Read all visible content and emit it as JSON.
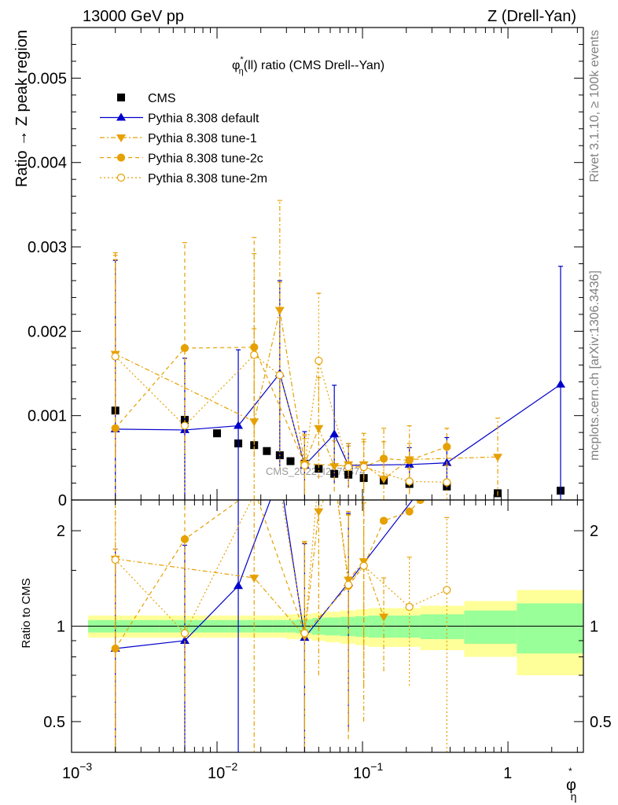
{
  "header": {
    "left": "13000 GeV pp",
    "right": "Z (Drell-Yan)"
  },
  "side_labels": {
    "rivet": "Rivet 3.1.10, ≥ 100k events",
    "mcplots": "mcplots.cern.ch [arXiv:1306.3436]"
  },
  "watermark": "CMS_2022_I2079374",
  "colors": {
    "cms": "#000000",
    "default": "#0000cc",
    "tunes": "#e6a000",
    "band_green": "#99ff99",
    "band_yellow": "#ffff99"
  },
  "chart_data": [
    {
      "type": "line",
      "title": "φ*η(ll) ratio (CMS Drell--Yan)",
      "title_parts": {
        "phi": "φ",
        "star": "*",
        "eta": "η",
        "rest": "(ll) ratio (CMS Drell--Yan)"
      },
      "ylabel": "Ratio → Z peak region",
      "xscale": "log",
      "xlim": [
        0.001,
        3.3
      ],
      "ylim": [
        0,
        0.0056
      ],
      "yticks": [
        0,
        0.001,
        0.002,
        0.003,
        0.004,
        0.005
      ],
      "ytick_labels": [
        "0",
        "0.001",
        "0.002",
        "0.003",
        "0.004",
        "0.005"
      ],
      "legend_position": "top-left",
      "series": [
        {
          "name": "CMS",
          "style": "cms",
          "x": [
            0.002,
            0.006,
            0.01,
            0.014,
            0.018,
            0.022,
            0.027,
            0.032,
            0.04,
            0.05,
            0.064,
            0.08,
            0.102,
            0.14,
            0.21,
            0.38,
            0.85,
            2.3
          ],
          "y": [
            0.00106,
            0.00095,
            0.00079,
            0.00067,
            0.00065,
            0.00058,
            0.00053,
            0.00046,
            0.00043,
            0.00037,
            0.00031,
            0.0003,
            0.00026,
            0.00023,
            0.00019,
            0.00016,
            8e-05,
            0.00011
          ]
        },
        {
          "name": "Pythia 8.308 default",
          "style": "default",
          "x": [
            0.002,
            0.006,
            0.014,
            0.027,
            0.04,
            0.064,
            0.08,
            0.21,
            0.38,
            2.3
          ],
          "y": [
            0.00084,
            0.00083,
            0.00088,
            0.0015,
            0.00041,
            0.00078,
            0.00041,
            0.00042,
            0.00044,
            0.00137
          ],
          "err": [
            0.002,
            0.00085,
            0.0009,
            0.0011,
            0.0004,
            0.00058,
            0.00026,
            0.0002,
            0.0003,
            0.0014
          ]
        },
        {
          "name": "Pythia 8.308 tune-1",
          "style": "tune1",
          "x": [
            0.002,
            0.018,
            0.027,
            0.04,
            0.05,
            0.064,
            0.08,
            0.102,
            0.14,
            0.21,
            0.85
          ],
          "y": [
            0.00173,
            0.00093,
            0.00225,
            0.00043,
            0.00085,
            0.0004,
            0.00042,
            0.00042,
            0.00025,
            0.00048,
            0.00051
          ],
          "err": [
            0.0012,
            0.0011,
            0.0013,
            0.0003,
            0.0006,
            0.0003,
            0.00025,
            0.0003,
            0.0006,
            0.0004,
            0.00046
          ]
        },
        {
          "name": "Pythia 8.308 tune-2c",
          "style": "tune2c",
          "x": [
            0.002,
            0.006,
            0.018,
            0.04,
            0.102,
            0.14,
            0.21,
            0.38
          ],
          "y": [
            0.00085,
            0.0018,
            0.00181,
            0.00043,
            0.00039,
            0.00049,
            0.00047,
            0.00063
          ],
          "err": [
            0.002,
            0.00125,
            0.0013,
            0.00035,
            0.0004,
            0.0002,
            0.0002,
            0.00022
          ]
        },
        {
          "name": "Pythia 8.308 tune-2m",
          "style": "tune2m",
          "x": [
            0.002,
            0.006,
            0.018,
            0.027,
            0.04,
            0.05,
            0.08,
            0.102,
            0.21,
            0.38
          ],
          "y": [
            0.0017,
            0.00088,
            0.00172,
            0.00148,
            0.00041,
            0.00165,
            0.00039,
            0.00039,
            0.00022,
            0.00021
          ],
          "err": [
            0.0012,
            0.0009,
            0.0012,
            0.0011,
            0.00035,
            0.0008,
            0.00025,
            0.0003,
            0.00015,
            0.0002
          ]
        }
      ]
    },
    {
      "type": "line",
      "ylabel": "Ratio to CMS",
      "xlabel": "φ*η",
      "xlabel_parts": {
        "phi": "φ",
        "star": "*",
        "eta": "η"
      },
      "xscale": "log",
      "yscale": "log",
      "xlim": [
        0.001,
        3.3
      ],
      "ylim": [
        0.4,
        2.5
      ],
      "xticks": [
        0.001,
        0.01,
        0.1,
        1
      ],
      "xtick_labels": [
        [
          "10",
          "−3"
        ],
        [
          "10",
          "−2"
        ],
        [
          "10",
          "−1"
        ],
        [
          "1",
          ""
        ]
      ],
      "yticks": [
        0.5,
        1,
        2
      ],
      "ytick_labels": [
        "0.5",
        "1",
        "2"
      ],
      "bands": {
        "edges": [
          0.0013,
          0.004,
          0.008,
          0.012,
          0.016,
          0.02,
          0.024,
          0.03,
          0.035,
          0.045,
          0.055,
          0.07,
          0.09,
          0.11,
          0.17,
          0.25,
          0.5,
          1.15,
          3.3
        ],
        "green": [
          0.045,
          0.045,
          0.045,
          0.045,
          0.045,
          0.045,
          0.045,
          0.045,
          0.05,
          0.06,
          0.065,
          0.07,
          0.075,
          0.08,
          0.08,
          0.09,
          0.12,
          0.18
        ],
        "yellow": [
          0.08,
          0.08,
          0.08,
          0.08,
          0.08,
          0.08,
          0.08,
          0.09,
          0.09,
          0.1,
          0.11,
          0.12,
          0.13,
          0.14,
          0.14,
          0.16,
          0.2,
          0.3
        ]
      },
      "series": [
        {
          "name": "Pythia 8.308 default",
          "style": "default",
          "x": [
            0.002,
            0.006,
            0.014,
            0.027,
            0.04,
            0.08,
            0.3
          ],
          "y": [
            0.85,
            0.9,
            1.34,
            3.0,
            0.92,
            1.37,
            3.0
          ],
          "err": [
            0.9,
            0.9,
            1.3,
            0,
            0.9,
            0.9,
            0
          ]
        },
        {
          "name": "Pythia 8.308 tune-1",
          "style": "tune1",
          "x": [
            0.002,
            0.018,
            0.04,
            0.05,
            0.064,
            0.08,
            0.102,
            0.14
          ],
          "y": [
            1.63,
            1.42,
            0.93,
            2.3,
            3.0,
            1.4,
            1.6,
            1.07
          ],
          "err": [
            1.3,
            1.3,
            0.9,
            1.6,
            0,
            0.9,
            1.1,
            0.35
          ]
        },
        {
          "name": "Pythia 8.308 tune-2c",
          "style": "tune2c",
          "x": [
            0.002,
            0.006,
            0.018,
            0.04,
            0.08,
            0.102,
            0.14,
            0.21,
            0.25
          ],
          "y": [
            0.85,
            1.88,
            2.7,
            0.95,
            1.34,
            1.55,
            2.15,
            2.3,
            2.5
          ],
          "err": [
            0.9,
            1.3,
            0,
            0.9,
            0.9,
            0.9,
            0,
            0,
            0
          ]
        },
        {
          "name": "Pythia 8.308 tune-2m",
          "style": "tune2m",
          "x": [
            0.002,
            0.006,
            0.018,
            0.027,
            0.04,
            0.05,
            0.064,
            0.08,
            0.102,
            0.21,
            0.38
          ],
          "y": [
            1.62,
            0.95,
            2.6,
            2.75,
            0.95,
            3.0,
            3.0,
            1.35,
            1.55,
            1.15,
            1.3
          ],
          "err": [
            1.3,
            0.9,
            0,
            0,
            0.9,
            0,
            0,
            0.9,
            0.9,
            0.5,
            0.9
          ]
        }
      ]
    }
  ]
}
